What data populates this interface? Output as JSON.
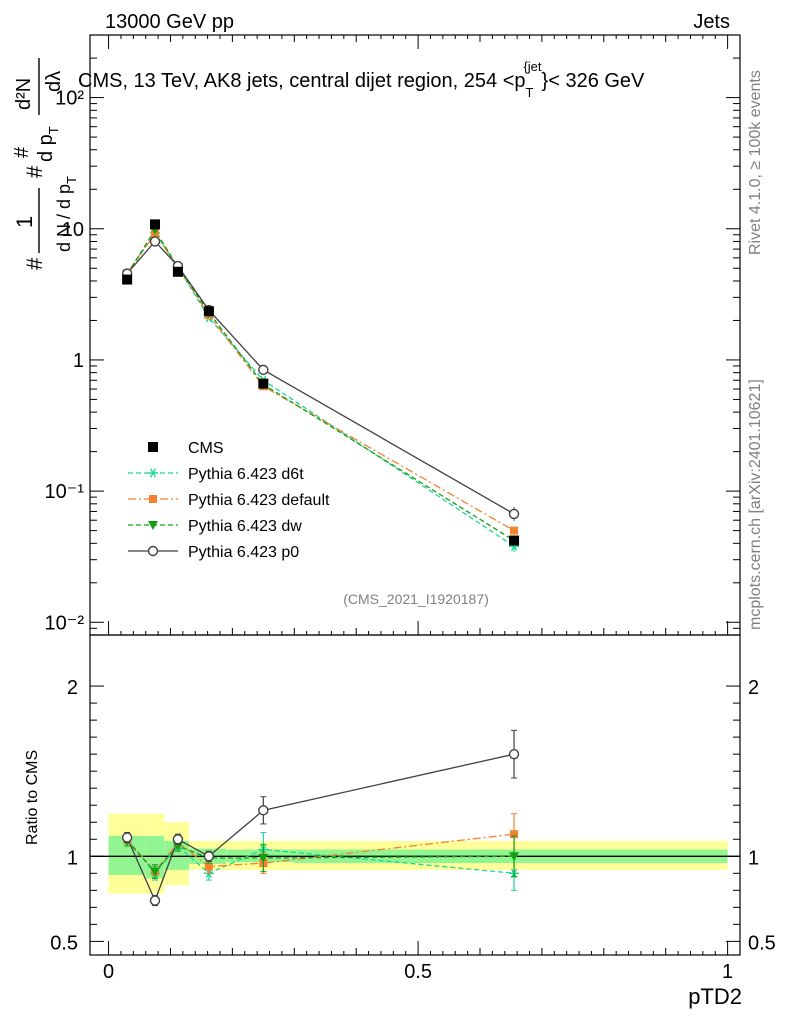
{
  "header": {
    "left": "13000 GeV pp",
    "right": "Jets",
    "side_top": "Rivet 4.1.0, ≥ 100k events",
    "side_bottom": "mcplots.cern.ch [arXiv:2401.10621]"
  },
  "chart_data": [
    {
      "type": "line",
      "panel": "main",
      "title": "CMS, 13 TeV, AK8 jets, central dijet region, 254 < p_T^{jet} < 326 GeV",
      "title_parts": {
        "main": "CMS, 13 TeV, AK8 jets, central dijet region, 254 <p",
        "sub": "T",
        "sup": "{jet",
        "end": "}< 326 GeV"
      },
      "ylabel": "1/(dN/dp_T) d²N/(dp_T dλ)",
      "ylabel_parts": {
        "hash": "#",
        "one": "1",
        "frac_den": "d N / d p",
        "sub_T": "T",
        "d2N": "d²N",
        "dpT": "d p",
        "dlambda": "dλ"
      },
      "yscale": "log",
      "ylim": [
        0.008,
        300
      ],
      "xlim": [
        -0.03,
        1.02
      ],
      "y_ticks": [
        "10⁻²",
        "10⁻¹",
        "1",
        "10",
        "10²"
      ],
      "tag": "(CMS_2021_I1920187)",
      "legend_position": "center-left",
      "x": [
        0.03,
        0.075,
        0.112,
        0.162,
        0.25,
        0.655
      ],
      "bin_edges": [
        0.0,
        0.06,
        0.09,
        0.13,
        0.19,
        0.3,
        1.0
      ],
      "series": [
        {
          "name": "CMS",
          "style": "data",
          "color": "#000000",
          "values": [
            4.1,
            10.8,
            4.7,
            2.35,
            0.66,
            0.042
          ]
        },
        {
          "name": "Pythia 6.423 d6t",
          "style": "star-dashed",
          "color": "#1ad69a",
          "values": [
            4.5,
            9.3,
            5.1,
            2.1,
            0.7,
            0.038
          ]
        },
        {
          "name": "Pythia 6.423 default",
          "style": "square-dashdot",
          "color": "#f4812e",
          "values": [
            4.6,
            9.2,
            5.1,
            2.2,
            0.63,
            0.05
          ]
        },
        {
          "name": "Pythia 6.423 dw",
          "style": "triangle-dashed",
          "color": "#13a013",
          "values": [
            4.5,
            9.8,
            5.1,
            2.3,
            0.65,
            0.042
          ]
        },
        {
          "name": "Pythia 6.423 p0",
          "style": "open-circle-solid",
          "color": "#404040",
          "values": [
            4.55,
            8.0,
            5.2,
            2.4,
            0.84,
            0.067
          ]
        }
      ]
    },
    {
      "type": "line",
      "panel": "ratio",
      "xlabel": "pTD2",
      "ylabel": "Ratio to CMS",
      "ylim": [
        0.42,
        2.3
      ],
      "xlim": [
        -0.03,
        1.02
      ],
      "y_ticks": [
        "0.5",
        "1",
        "2"
      ],
      "x_ticks": [
        "0",
        "0.5",
        "1"
      ],
      "x": [
        0.03,
        0.075,
        0.112,
        0.162,
        0.25,
        0.655
      ],
      "bin_edges": [
        0.0,
        0.06,
        0.09,
        0.13,
        0.19,
        0.3,
        1.0
      ],
      "band_stat": {
        "lo": [
          0.89,
          0.87,
          0.92,
          0.955,
          0.965,
          0.96
        ],
        "hi": [
          1.12,
          1.12,
          1.09,
          1.045,
          1.04,
          1.04
        ]
      },
      "band_total": {
        "lo": [
          0.78,
          0.78,
          0.83,
          0.92,
          0.92,
          0.92
        ],
        "hi": [
          1.25,
          1.25,
          1.2,
          1.09,
          1.09,
          1.09
        ]
      },
      "series": [
        {
          "name": "Pythia 6.423 d6t",
          "color": "#1ad69a",
          "values": [
            1.1,
            0.9,
            1.06,
            0.9,
            1.04,
            0.9
          ],
          "err": [
            0.03,
            0.04,
            0.03,
            0.04,
            0.1,
            0.1
          ]
        },
        {
          "name": "Pythia 6.423 default",
          "color": "#f4812e",
          "values": [
            1.1,
            0.91,
            1.08,
            0.94,
            0.96,
            1.13
          ],
          "err": [
            0.03,
            0.04,
            0.03,
            0.04,
            0.06,
            0.12
          ]
        },
        {
          "name": "Pythia 6.423 dw",
          "color": "#13a013",
          "values": [
            1.09,
            0.91,
            1.06,
            0.99,
            0.99,
            1.0
          ],
          "err": [
            0.03,
            0.04,
            0.03,
            0.03,
            0.08,
            0.12
          ]
        },
        {
          "name": "Pythia 6.423 p0",
          "color": "#404040",
          "values": [
            1.11,
            0.74,
            1.1,
            1.0,
            1.27,
            1.6
          ],
          "err": [
            0.03,
            0.03,
            0.03,
            0.03,
            0.08,
            0.14
          ]
        }
      ]
    }
  ]
}
